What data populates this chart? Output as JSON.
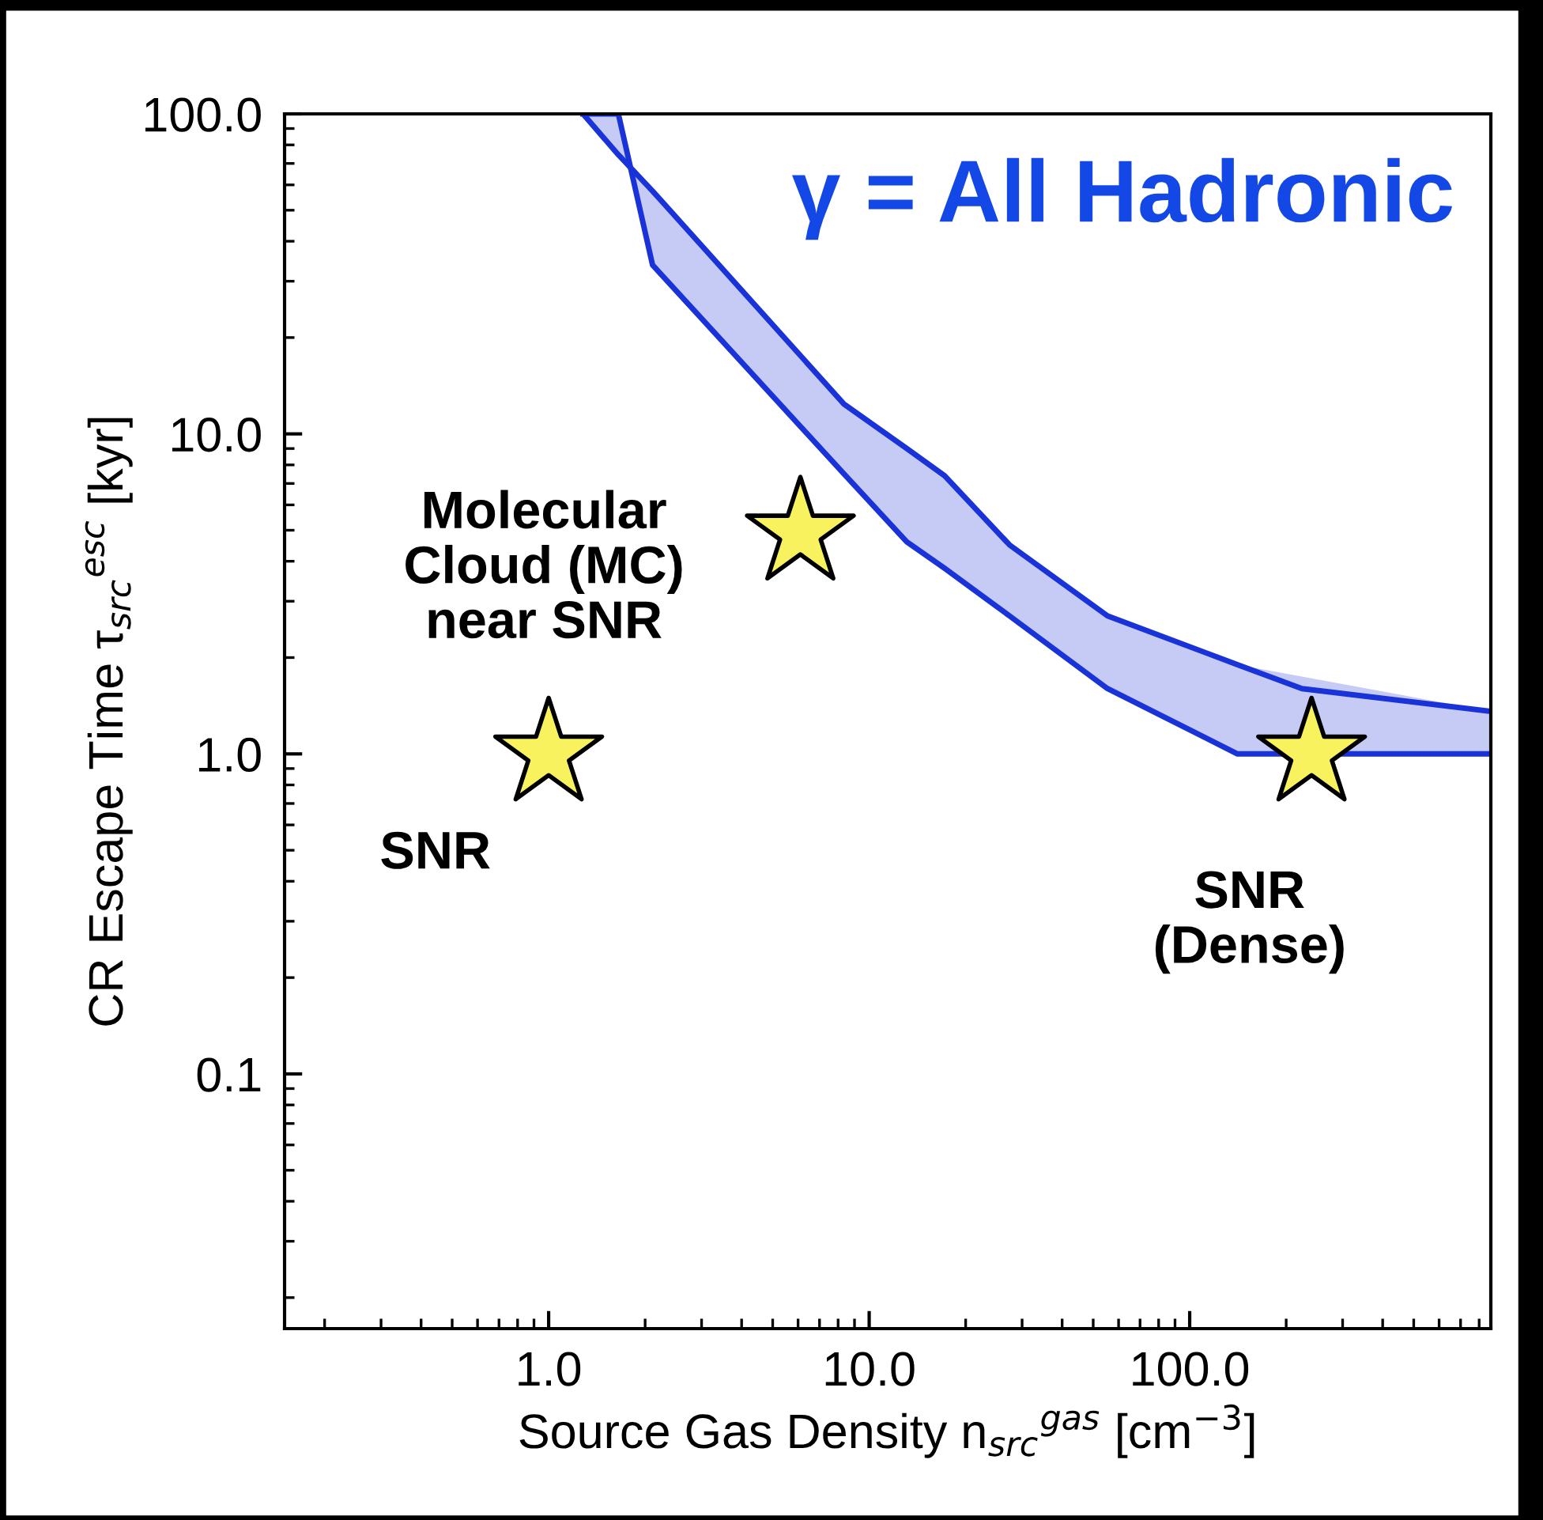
{
  "chart_data": {
    "type": "scatter",
    "xlabel": "Source Gas Density n$_{src}$$^{gas}$ [cm$^{−3}$]",
    "ylabel": "CR Escape Time τ$_{src}$$^{esc}$ [kyr]",
    "log": "xy",
    "xlim": [
      0.15,
      870
    ],
    "ylim": [
      0.016,
      100
    ],
    "xticks": [
      {
        "value": 0.2,
        "label": null
      },
      {
        "value": 0.3,
        "label": null
      },
      {
        "value": 0.4,
        "label": null
      },
      {
        "value": 0.5,
        "label": null
      },
      {
        "value": 0.6,
        "label": null
      },
      {
        "value": 0.7,
        "label": null
      },
      {
        "value": 0.8,
        "label": null
      },
      {
        "value": 0.9,
        "label": null
      },
      {
        "value": 1,
        "label": "1.0"
      },
      {
        "value": 2,
        "label": null
      },
      {
        "value": 3,
        "label": null
      },
      {
        "value": 4,
        "label": null
      },
      {
        "value": 5,
        "label": null
      },
      {
        "value": 6,
        "label": null
      },
      {
        "value": 7,
        "label": null
      },
      {
        "value": 8,
        "label": null
      },
      {
        "value": 9,
        "label": null
      },
      {
        "value": 10,
        "label": "10.0"
      },
      {
        "value": 20,
        "label": null
      },
      {
        "value": 30,
        "label": null
      },
      {
        "value": 40,
        "label": null
      },
      {
        "value": 50,
        "label": null
      },
      {
        "value": 60,
        "label": null
      },
      {
        "value": 70,
        "label": null
      },
      {
        "value": 80,
        "label": null
      },
      {
        "value": 90,
        "label": null
      },
      {
        "value": 100,
        "label": "100.0"
      },
      {
        "value": 200,
        "label": null
      },
      {
        "value": 300,
        "label": null
      },
      {
        "value": 400,
        "label": null
      },
      {
        "value": 500,
        "label": null
      },
      {
        "value": 600,
        "label": null
      },
      {
        "value": 700,
        "label": null
      },
      {
        "value": 800,
        "label": null
      }
    ],
    "yticks": [
      {
        "value": 0.02,
        "label": null
      },
      {
        "value": 0.03,
        "label": null
      },
      {
        "value": 0.04,
        "label": null
      },
      {
        "value": 0.05,
        "label": null
      },
      {
        "value": 0.06,
        "label": null
      },
      {
        "value": 0.07,
        "label": null
      },
      {
        "value": 0.08,
        "label": null
      },
      {
        "value": 0.09,
        "label": null
      },
      {
        "value": 0.1,
        "label": "0.1"
      },
      {
        "value": 0.2,
        "label": null
      },
      {
        "value": 0.3,
        "label": null
      },
      {
        "value": 0.4,
        "label": null
      },
      {
        "value": 0.5,
        "label": null
      },
      {
        "value": 0.6,
        "label": null
      },
      {
        "value": 0.7,
        "label": null
      },
      {
        "value": 0.8,
        "label": null
      },
      {
        "value": 0.9,
        "label": null
      },
      {
        "value": 1,
        "label": "1.0"
      },
      {
        "value": 2,
        "label": null
      },
      {
        "value": 3,
        "label": null
      },
      {
        "value": 4,
        "label": null
      },
      {
        "value": 5,
        "label": null
      },
      {
        "value": 6,
        "label": null
      },
      {
        "value": 7,
        "label": null
      },
      {
        "value": 8,
        "label": null
      },
      {
        "value": 9,
        "label": null
      },
      {
        "value": 10,
        "label": "10.0"
      },
      {
        "value": 20,
        "label": null
      },
      {
        "value": 30,
        "label": null
      },
      {
        "value": 40,
        "label": null
      },
      {
        "value": 50,
        "label": null
      },
      {
        "value": 60,
        "label": null
      },
      {
        "value": 70,
        "label": null
      },
      {
        "value": 80,
        "label": null
      },
      {
        "value": 90,
        "label": null
      },
      {
        "value": 100,
        "label": "100.0"
      }
    ],
    "grid": false,
    "legend": false,
    "marker": "star",
    "series": [
      {
        "type": "line",
        "marker": "none",
        "color": "#1a33d9",
        "x": [
          1.28,
          1.65,
          2.11,
          8.34,
          13.1,
          17.2,
          27.4,
          55.4,
          141,
          863
        ],
        "values": [
          100,
          100,
          33.7,
          7.5,
          4.6,
          3.8,
          2.7,
          1.6,
          1.0,
          1.0
        ],
        "lower": [
          100,
          100,
          33.7,
          7.5,
          4.6,
          3.8,
          2.7,
          1.6,
          1.0,
          1.0
        ],
        "upper": [
          100,
          74.5,
          57.4,
          12.4,
          9.0,
          7.4,
          4.5,
          2.7,
          1.9,
          1.36
        ]
      },
      {
        "type": "line",
        "marker": "none",
        "color": "#1a33d9",
        "x": [
          1.28,
          1.65,
          2.11,
          8.34,
          13.1,
          17.2,
          27.4,
          55.4,
          141,
          224,
          863
        ],
        "values": [
          100,
          74.5,
          57.4,
          12.4,
          9.0,
          7.4,
          4.5,
          2.7,
          1.9,
          1.6,
          1.36
        ]
      },
      {
        "color": "#f7f25e",
        "x": [
          1.0,
          6.1,
          240
        ],
        "values": [
          1.0,
          4.9,
          1.0
        ]
      }
    ],
    "annotations": [
      "γ = All Hadronic",
      "SNR",
      "Molecular\nCloud (MC)\nnear SNR",
      "SNR\n(Dense)"
    ]
  }
}
